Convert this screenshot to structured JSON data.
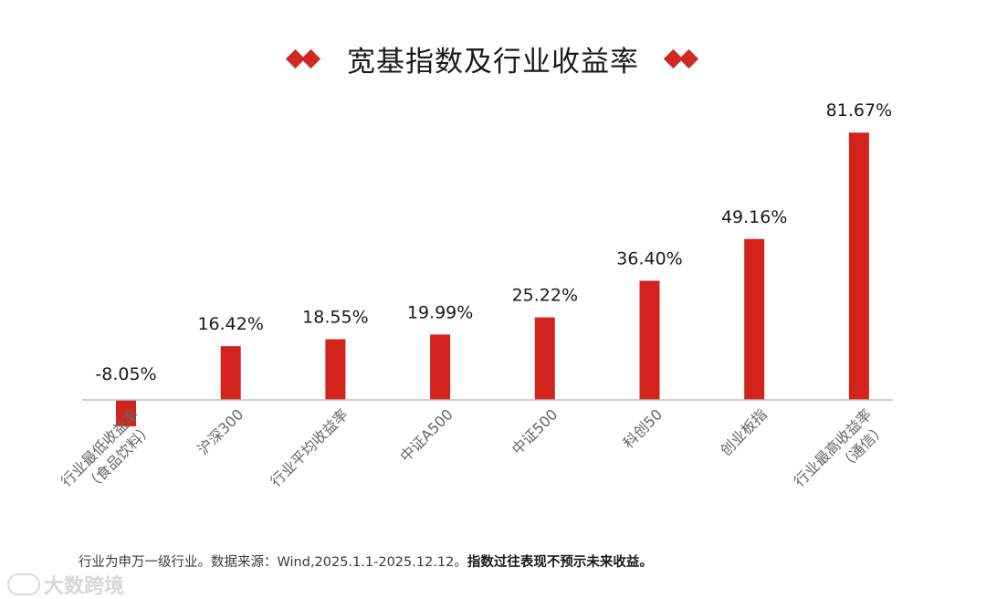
{
  "title": "宽基指数及行业收益率",
  "footnote": {
    "normal": "行业为申万一级行业。数据来源：Wind,2025.1.1-2025.12.12。",
    "bold": "指数过往表现不预示未来收益。"
  },
  "watermark": "大数跨境",
  "colors": {
    "bar": "#d3231d",
    "accent": "#cf2924",
    "axis": "#bdbdbd"
  },
  "chart_data": {
    "type": "bar",
    "categories": [
      "行业最低收益率\n（食品饮料）",
      "沪深300",
      "行业平均收益率",
      "中证A500",
      "中证500",
      "科创50",
      "创业板指",
      "行业最高收益率\n（通信）"
    ],
    "values": [
      -8.05,
      16.42,
      18.55,
      19.99,
      25.22,
      36.4,
      49.16,
      81.67
    ],
    "data_labels": [
      "-8.05%",
      "16.42%",
      "18.55%",
      "19.99%",
      "25.22%",
      "36.40%",
      "49.16%",
      "81.67%"
    ],
    "title": "宽基指数及行业收益率",
    "xlabel": "",
    "ylabel": "",
    "ylim": [
      -10,
      90
    ],
    "grid": false,
    "legend": "none"
  }
}
